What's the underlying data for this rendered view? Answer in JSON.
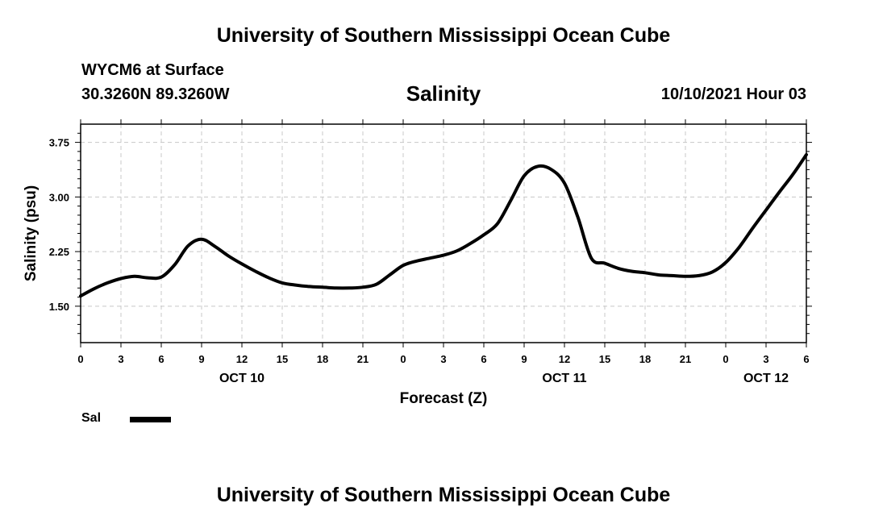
{
  "header": {
    "title_top": "University of Southern Mississippi Ocean Cube",
    "station": "WYCM6 at Surface",
    "coords": "30.3260N  89.3260W",
    "variable": "Salinity",
    "datetime": "10/10/2021 Hour 03",
    "title_bottom": "University of Southern Mississippi Ocean Cube"
  },
  "legend": {
    "label": "Sal"
  },
  "chart_data": {
    "type": "line",
    "title": "Salinity",
    "xlabel": "Forecast (Z)",
    "ylabel": "Salinity (psu)",
    "xlim": [
      0,
      54
    ],
    "ylim": [
      1.0,
      4.0
    ],
    "grid": true,
    "line_color": "#000000",
    "x_ticks": [
      {
        "x": 0,
        "label": "0"
      },
      {
        "x": 3,
        "label": "3"
      },
      {
        "x": 6,
        "label": "6"
      },
      {
        "x": 9,
        "label": "9"
      },
      {
        "x": 12,
        "label": "12"
      },
      {
        "x": 15,
        "label": "15"
      },
      {
        "x": 18,
        "label": "18"
      },
      {
        "x": 21,
        "label": "21"
      },
      {
        "x": 24,
        "label": "0"
      },
      {
        "x": 27,
        "label": "3"
      },
      {
        "x": 30,
        "label": "6"
      },
      {
        "x": 33,
        "label": "9"
      },
      {
        "x": 36,
        "label": "12"
      },
      {
        "x": 39,
        "label": "15"
      },
      {
        "x": 42,
        "label": "18"
      },
      {
        "x": 45,
        "label": "21"
      },
      {
        "x": 48,
        "label": "0"
      },
      {
        "x": 51,
        "label": "3"
      },
      {
        "x": 54,
        "label": "6"
      }
    ],
    "x_date_labels": [
      {
        "x": 12,
        "label": "OCT 10"
      },
      {
        "x": 36,
        "label": "OCT 11"
      },
      {
        "x": 51,
        "label": "OCT 12"
      }
    ],
    "y_ticks": [
      {
        "y": 1.5,
        "label": "1.50"
      },
      {
        "y": 2.25,
        "label": "2.25"
      },
      {
        "y": 3.0,
        "label": "3.00"
      },
      {
        "y": 3.75,
        "label": "3.75"
      }
    ],
    "y_minor": [
      1.125,
      1.25,
      1.375,
      1.625,
      1.75,
      1.875,
      2.0,
      2.125,
      2.375,
      2.5,
      2.625,
      2.75,
      2.875,
      3.125,
      3.25,
      3.375,
      3.5,
      3.625,
      3.875
    ],
    "series": [
      {
        "name": "Sal",
        "x": [
          0,
          1,
          2,
          3,
          4,
          5,
          6,
          7,
          8,
          9,
          10,
          11,
          12,
          13,
          14,
          15,
          16,
          17,
          18,
          19,
          20,
          21,
          22,
          23,
          24,
          25,
          26,
          27,
          28,
          29,
          30,
          31,
          32,
          33,
          34,
          35,
          36,
          37,
          38,
          39,
          40,
          41,
          42,
          43,
          44,
          45,
          46,
          47,
          48,
          49,
          50,
          51,
          52,
          53,
          54
        ],
        "values": [
          1.64,
          1.74,
          1.82,
          1.88,
          1.91,
          1.89,
          1.9,
          2.07,
          2.33,
          2.42,
          2.32,
          2.19,
          2.08,
          1.98,
          1.89,
          1.82,
          1.79,
          1.77,
          1.76,
          1.75,
          1.75,
          1.76,
          1.8,
          1.93,
          2.06,
          2.12,
          2.16,
          2.2,
          2.26,
          2.36,
          2.48,
          2.63,
          2.95,
          3.29,
          3.42,
          3.38,
          3.19,
          2.72,
          2.16,
          2.09,
          2.02,
          1.98,
          1.96,
          1.93,
          1.92,
          1.91,
          1.92,
          1.97,
          2.1,
          2.31,
          2.57,
          2.82,
          3.07,
          3.31,
          3.58
        ]
      }
    ]
  }
}
